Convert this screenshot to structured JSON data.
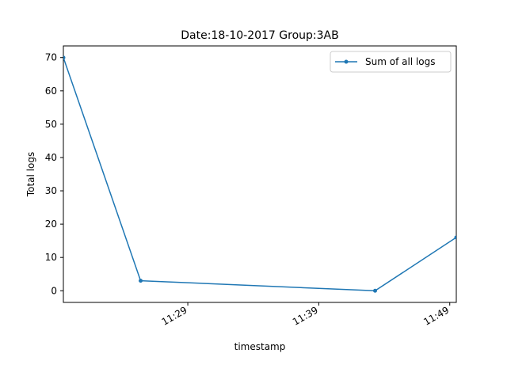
{
  "chart_data": {
    "type": "line",
    "title": "Date:18-10-2017  Group:3AB",
    "xlabel": "timestamp",
    "ylabel": "Total logs",
    "x_unit": "minutes after 11:00",
    "xlim": [
      19.5,
      49.5
    ],
    "ylim": [
      -3.5,
      73.5
    ],
    "x_ticks": [
      {
        "value": 29,
        "label": "11:29"
      },
      {
        "value": 39,
        "label": "11:39"
      },
      {
        "value": 49,
        "label": "11:49"
      }
    ],
    "y_ticks": [
      0,
      10,
      20,
      30,
      40,
      50,
      60,
      70
    ],
    "grid": false,
    "legend_position": "top-right",
    "series": [
      {
        "name": "Sum of all logs",
        "color": "#1f77b4",
        "marker": "dot",
        "points": [
          {
            "x": 19.5,
            "y": 70
          },
          {
            "x": 25.4,
            "y": 3
          },
          {
            "x": 43.3,
            "y": 0
          },
          {
            "x": 49.5,
            "y": 16
          }
        ]
      }
    ]
  }
}
